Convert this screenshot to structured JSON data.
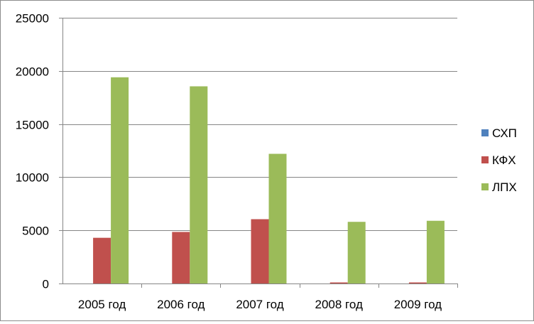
{
  "chart_data": {
    "type": "bar",
    "categories": [
      "2005 год",
      "2006 год",
      "2007 год",
      "2008 год",
      "2009 год"
    ],
    "series": [
      {
        "name": "СХП",
        "color": "#4f81bd",
        "values": [
          0,
          0,
          0,
          0,
          0
        ]
      },
      {
        "name": "КФХ",
        "color": "#c0504d",
        "values": [
          4300,
          4850,
          6050,
          100,
          100
        ]
      },
      {
        "name": "ЛПХ",
        "color": "#9bbb59",
        "values": [
          19400,
          18550,
          12200,
          5800,
          5900
        ]
      }
    ],
    "ylim": [
      0,
      25000
    ],
    "yticks": [
      "0",
      "5000",
      "10000",
      "15000",
      "20000",
      "25000"
    ],
    "title": "",
    "xlabel": "",
    "ylabel": "",
    "grid": true,
    "legend_position": "right"
  }
}
